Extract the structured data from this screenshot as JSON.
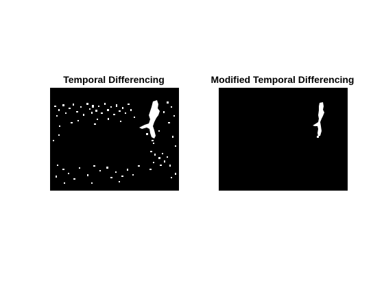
{
  "panels": [
    {
      "title": "Temporal Differencing",
      "background_color": "#000000",
      "foreground_color": "#ffffff",
      "content": "binary-mask-noisy"
    },
    {
      "title": "Modified Temporal Differencing",
      "background_color": "#000000",
      "foreground_color": "#ffffff",
      "content": "binary-mask-clean"
    }
  ]
}
